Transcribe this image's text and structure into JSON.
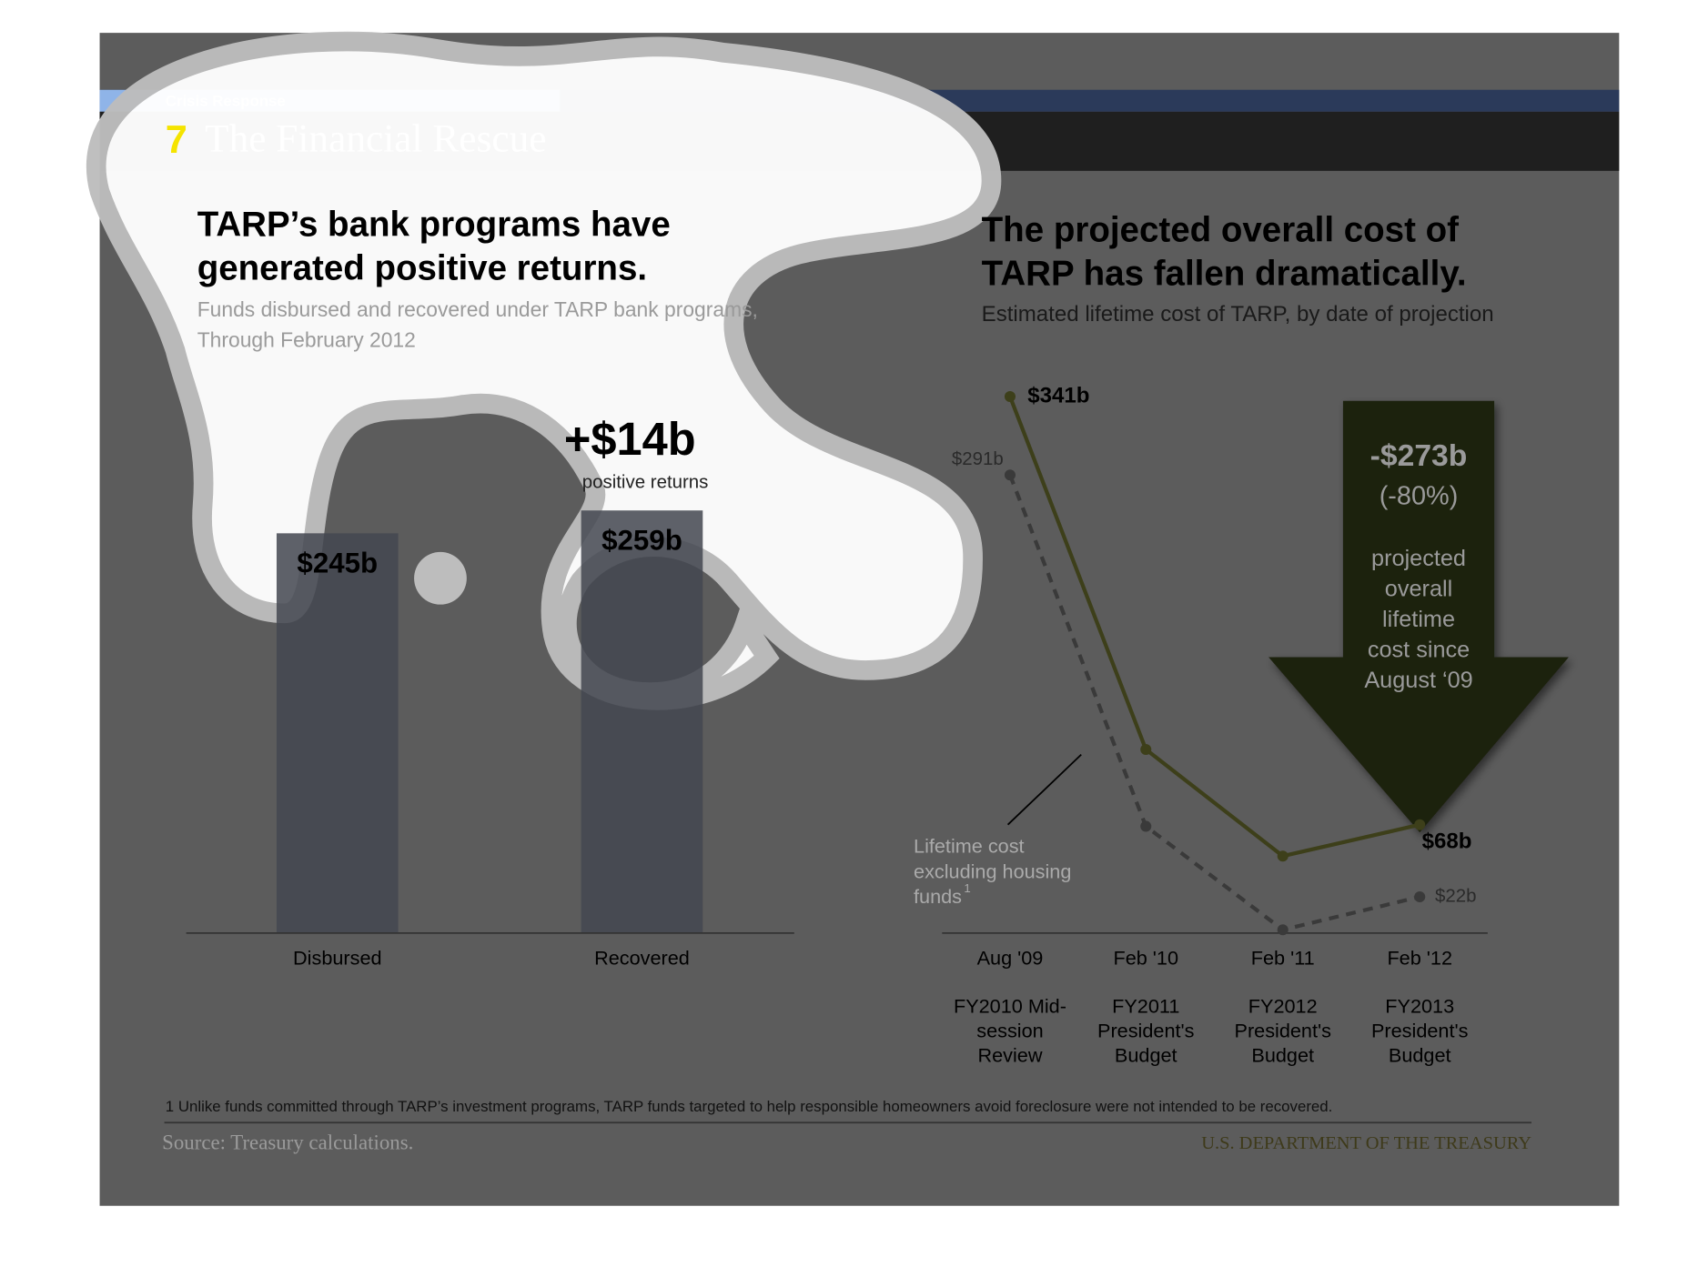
{
  "header": {
    "section": "Crisis Response",
    "number": "7",
    "title": "The Financial Rescue"
  },
  "chart_data": [
    {
      "type": "bar",
      "title": [
        "TARP’s bank programs have",
        "generated positive returns."
      ],
      "subtitle": [
        "Funds disbursed and recovered under TARP bank programs,",
        "Through February 2012"
      ],
      "categories": [
        "Disbursed",
        "Recovered"
      ],
      "values": [
        245,
        259
      ],
      "value_labels": [
        "$245b",
        "$259b"
      ],
      "color": "#434650",
      "annotation": "+$14b",
      "annotation_sub": "positive returns"
    },
    {
      "type": "line",
      "title": [
        "The projected overall cost of",
        "TARP has fallen dramatically."
      ],
      "subtitle": [
        "Estimated lifetime cost of TARP, by date of projection"
      ],
      "categories": [
        "Aug '09",
        "Feb '10",
        "Feb '11",
        "Feb '12"
      ],
      "sublabels": [
        [
          "FY2010 Mid-",
          "session",
          "Review"
        ],
        [
          "FY2011",
          "President's",
          "Budget"
        ],
        [
          "FY2012",
          "President's",
          "Budget"
        ],
        [
          "FY2013",
          "President's",
          "Budget"
        ]
      ],
      "series": [
        {
          "color": "#3d3f1a",
          "dash": false,
          "values": [
            341,
            116,
            48,
            68
          ],
          "value_labels": [
            "$341b",
            null,
            null,
            "$68b"
          ]
        },
        {
          "name": [
            "Lifetime cost",
            "excluding housing",
            "funds"
          ],
          "name_note": "1",
          "color": "#3a3a3a",
          "dash": true,
          "values": [
            291,
            67,
            1,
            22
          ],
          "value_labels": [
            "$291b",
            null,
            null,
            "$22b"
          ]
        }
      ],
      "arrow": {
        "value": "-$273b",
        "percent": "(-80%)",
        "text": [
          "projected",
          "overall",
          "lifetime",
          "cost since",
          "August ‘09"
        ]
      }
    }
  ],
  "footnote": "1 Unlike funds committed through TARP’s investment programs, TARP funds targeted to help responsible homeowners avoid foreclosure were not intended to be recovered.",
  "source": "Source: Treasury calculations.",
  "brand": "U.S. DEPARTMENT OF THE TREASURY"
}
